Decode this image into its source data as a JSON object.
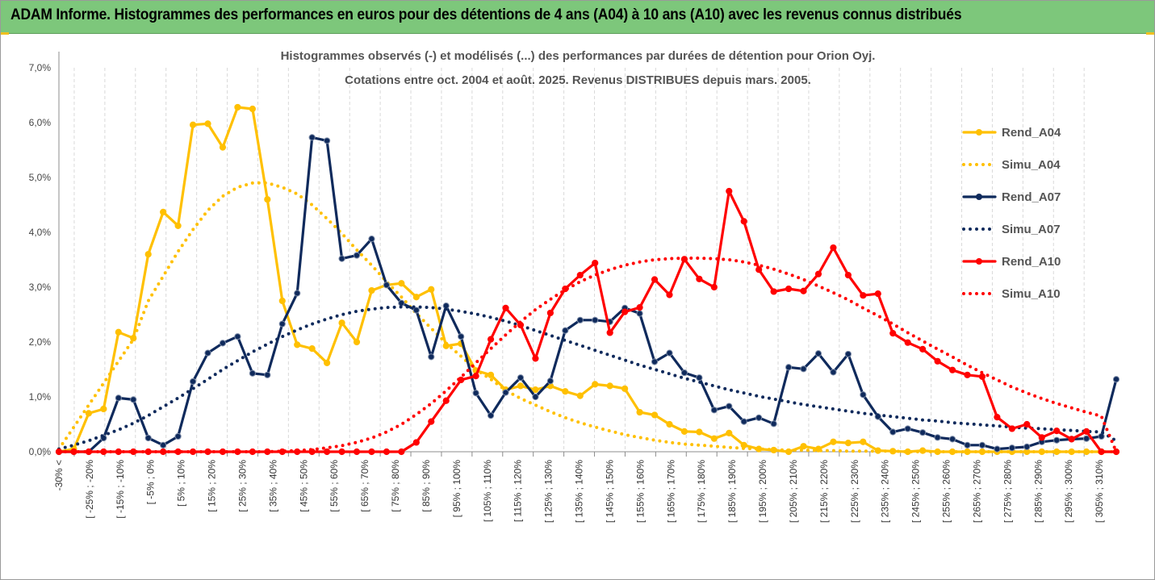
{
  "banner": {
    "title": "ADAM Informe. Histogrammes des performances en euros pour des détentions de 4 ans (A04) à 10 ans (A10) avec les revenus connus distribués"
  },
  "colors": {
    "banner": "#7dc77b",
    "A04": "#ffc000",
    "A07": "#0f2a5c",
    "A10": "#ff0000"
  },
  "chart_data": {
    "type": "line",
    "title": "Histogrammes observés (-) et modélisés (...) des performances par durées de détention pour Orion Oyj.",
    "subtitle": "Cotations entre oct. 2004 et août. 2025. Revenus DISTRIBUES depuis mars. 2005.",
    "y_ticks": [
      "0,0%",
      "1,0%",
      "2,0%",
      "3,0%",
      "4,0%",
      "5,0%",
      "6,0%",
      "7,0%"
    ],
    "ylim": [
      0,
      7
    ],
    "grid": "vertical-dashed",
    "legend_position": "right",
    "x_labels": [
      "-30% <",
      "[ -25% ; -20%",
      "[ -15% ; -10%",
      "[ -5% ; 0%",
      "[ 5% ; 10%",
      "[ 15% ; 20%",
      "[ 25% ; 30%",
      "[ 35% ; 40%",
      "[ 45% ; 50%",
      "[ 55% ; 60%",
      "[ 65% ; 70%",
      "[ 75% ; 80%",
      "[ 85% ; 90%",
      "[ 95% ; 100%",
      "[ 105% ; 110%",
      "[ 115% ; 120%",
      "[ 125% ; 130%",
      "[ 135% ; 140%",
      "[ 145% ; 150%",
      "[ 155% ; 160%",
      "[ 165% ; 170%",
      "[ 175% ; 180%",
      "[ 185% ; 190%",
      "[ 195% ; 200%",
      "[ 205% ; 210%",
      "[ 215% ; 220%",
      "[ 225% ; 230%",
      "[ 235% ; 240%",
      "[ 245% ; 250%",
      "[ 255% ; 260%",
      "[ 265% ; 270%",
      "[ 275% ; 280%",
      "[ 285% ; 290%",
      "[ 295% ; 300%",
      "[ 305% ; 310%"
    ],
    "series": [
      {
        "name": "Rend_A04",
        "style": "solid",
        "color": "#ffc000",
        "values": [
          0,
          0.05,
          0.7,
          0.78,
          2.18,
          2.07,
          3.6,
          4.37,
          4.12,
          5.96,
          5.98,
          5.55,
          6.28,
          6.25,
          4.6,
          2.75,
          1.95,
          1.88,
          1.62,
          2.35,
          2.0,
          2.94,
          3.04,
          3.07,
          2.82,
          2.96,
          1.93,
          1.97,
          1.48,
          1.4,
          1.13,
          1.2,
          1.13,
          1.2,
          1.1,
          1.02,
          1.23,
          1.2,
          1.15,
          0.72,
          0.67,
          0.5,
          0.37,
          0.36,
          0.24,
          0.34,
          0.12,
          0.05,
          0.03,
          0.0,
          0.1,
          0.05,
          0.18,
          0.16,
          0.18,
          0.02,
          0.01,
          0.0,
          0.02,
          0.0,
          0.0,
          0.0,
          0.0,
          0.0,
          0.0,
          0.0,
          0.0,
          0.0,
          0.0,
          0.0,
          0.0,
          0.0
        ]
      },
      {
        "name": "Simu_A04",
        "style": "dotted",
        "color": "#ffc000",
        "values": [
          0.05,
          0.45,
          0.85,
          1.25,
          1.65,
          2.05,
          2.75,
          3.2,
          3.65,
          4.05,
          4.4,
          4.66,
          4.82,
          4.9,
          4.9,
          4.82,
          4.7,
          4.5,
          4.25,
          3.98,
          3.68,
          3.4,
          3.1,
          2.82,
          2.52,
          2.25,
          1.98,
          1.74,
          1.5,
          1.32,
          1.12,
          0.97,
          0.85,
          0.73,
          0.62,
          0.53,
          0.45,
          0.38,
          0.31,
          0.26,
          0.21,
          0.17,
          0.14,
          0.12,
          0.1,
          0.08,
          0.06,
          0.05,
          0.04,
          0.03,
          0.03,
          0.02,
          0.02,
          0.01,
          0.01,
          0.01,
          0.01,
          0.0,
          0.0,
          0.0,
          0.0,
          0.0,
          0.0,
          0.0,
          0.0,
          0.0,
          0.0,
          0.0,
          0.0,
          0.0,
          0.0,
          0.0
        ]
      },
      {
        "name": "Rend_A07",
        "style": "solid",
        "color": "#0f2a5c",
        "values": [
          0,
          0,
          0,
          0.25,
          0.98,
          0.95,
          0.25,
          0.12,
          0.28,
          1.28,
          1.8,
          1.98,
          2.1,
          1.43,
          1.4,
          2.33,
          2.89,
          5.73,
          5.67,
          3.52,
          3.58,
          3.88,
          3.04,
          2.71,
          2.58,
          1.73,
          2.66,
          2.1,
          1.07,
          0.66,
          1.08,
          1.35,
          1.0,
          1.29,
          2.21,
          2.4,
          2.4,
          2.37,
          2.62,
          2.52,
          1.64,
          1.8,
          1.44,
          1.35,
          0.76,
          0.83,
          0.55,
          0.62,
          0.51,
          1.54,
          1.51,
          1.79,
          1.45,
          1.78,
          1.04,
          0.64,
          0.36,
          0.42,
          0.35,
          0.26,
          0.23,
          0.12,
          0.12,
          0.05,
          0.07,
          0.09,
          0.18,
          0.21,
          0.23,
          0.24,
          0.28,
          1.32
        ]
      },
      {
        "name": "Simu_A07",
        "style": "dotted",
        "color": "#0f2a5c",
        "values": [
          0.05,
          0.12,
          0.2,
          0.3,
          0.4,
          0.52,
          0.66,
          0.82,
          0.98,
          1.15,
          1.32,
          1.5,
          1.66,
          1.82,
          1.96,
          2.1,
          2.22,
          2.33,
          2.42,
          2.5,
          2.56,
          2.6,
          2.63,
          2.64,
          2.64,
          2.63,
          2.6,
          2.56,
          2.51,
          2.45,
          2.38,
          2.3,
          2.21,
          2.12,
          2.03,
          1.94,
          1.85,
          1.76,
          1.67,
          1.58,
          1.5,
          1.42,
          1.34,
          1.27,
          1.2,
          1.13,
          1.07,
          1.01,
          0.96,
          0.91,
          0.86,
          0.82,
          0.78,
          0.74,
          0.7,
          0.67,
          0.64,
          0.61,
          0.58,
          0.56,
          0.53,
          0.51,
          0.49,
          0.47,
          0.45,
          0.43,
          0.42,
          0.4,
          0.39,
          0.37,
          0.36,
          0.2
        ]
      },
      {
        "name": "Rend_A10",
        "style": "solid",
        "color": "#ff0000",
        "values": [
          0,
          0,
          0,
          0,
          0,
          0,
          0,
          0,
          0,
          0,
          0,
          0,
          0,
          0,
          0,
          0,
          0,
          0,
          0,
          0,
          0,
          0,
          0,
          0,
          0.17,
          0.55,
          0.93,
          1.31,
          1.38,
          2.05,
          2.62,
          2.31,
          1.7,
          2.53,
          2.97,
          3.22,
          3.44,
          2.17,
          2.55,
          2.63,
          3.14,
          2.86,
          3.51,
          3.15,
          3.0,
          4.75,
          4.2,
          3.32,
          2.92,
          2.97,
          2.93,
          3.24,
          3.72,
          3.22,
          2.85,
          2.88,
          2.16,
          1.99,
          1.87,
          1.65,
          1.49,
          1.4,
          1.37,
          0.63,
          0.42,
          0.5,
          0.26,
          0.38,
          0.23,
          0.37,
          0.0,
          0.0
        ]
      },
      {
        "name": "Simu_A10",
        "style": "dotted",
        "color": "#ff0000",
        "values": [
          0,
          0,
          0,
          0,
          0,
          0,
          0,
          0,
          0,
          0,
          0,
          0,
          0,
          0,
          0,
          0.01,
          0.02,
          0.04,
          0.07,
          0.11,
          0.17,
          0.25,
          0.36,
          0.5,
          0.68,
          0.88,
          1.11,
          1.36,
          1.62,
          1.88,
          2.13,
          2.37,
          2.59,
          2.78,
          2.95,
          3.1,
          3.22,
          3.32,
          3.4,
          3.46,
          3.5,
          3.52,
          3.53,
          3.53,
          3.52,
          3.5,
          3.46,
          3.4,
          3.33,
          3.24,
          3.14,
          3.02,
          2.9,
          2.77,
          2.62,
          2.48,
          2.33,
          2.17,
          2.02,
          1.87,
          1.73,
          1.58,
          1.44,
          1.31,
          1.18,
          1.07,
          0.97,
          0.88,
          0.8,
          0.72,
          0.65,
          0.0
        ]
      }
    ]
  }
}
